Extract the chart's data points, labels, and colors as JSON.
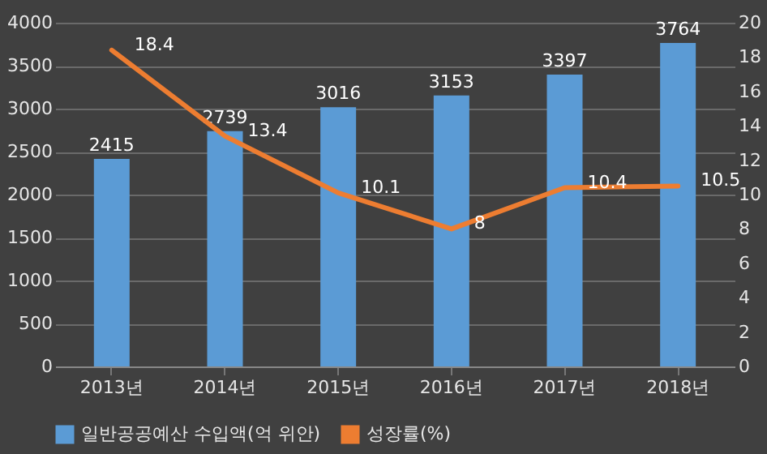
{
  "chart_data": {
    "type": "bar",
    "categories": [
      "2013년",
      "2014년",
      "2015년",
      "2016년",
      "2017년",
      "2018년"
    ],
    "series": [
      {
        "name": "일반공공예산 수입액(억 위안)",
        "color": "#5b9bd5",
        "values": [
          2415,
          2739,
          3016,
          3153,
          3397,
          3764
        ]
      },
      {
        "name": "성장률(%)",
        "type": "line",
        "axis": "y2",
        "color": "#ed7d31",
        "values": [
          18.4,
          13.4,
          10.1,
          8,
          10.4,
          10.5
        ]
      }
    ],
    "ylim": [
      0,
      4000
    ],
    "yticks": [
      0,
      500,
      1000,
      1500,
      2000,
      2500,
      3000,
      3500,
      4000
    ],
    "y2lim": [
      0,
      20
    ],
    "y2ticks": [
      0,
      2,
      4,
      6,
      8,
      10,
      12,
      14,
      16,
      18,
      20
    ],
    "grid": "y",
    "legend": "bottom",
    "data_labels": true,
    "marker": "none"
  }
}
